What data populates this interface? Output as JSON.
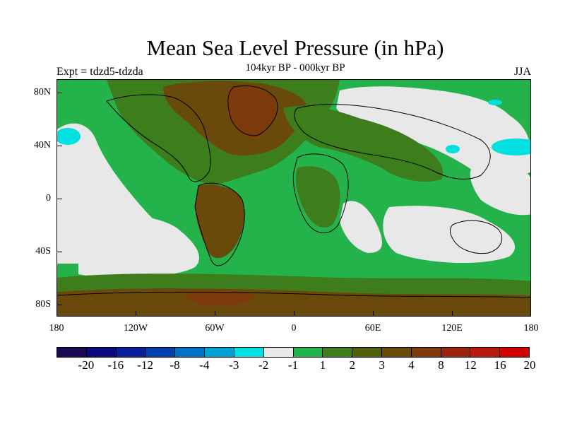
{
  "title": "Mean Sea Level Pressure (in hPa)",
  "subtitle": "104kyr BP - 000kyr BP",
  "experiment": "Expt = tdzd5-tdzda",
  "season": "JJA",
  "y_axis_labels": [
    "80N",
    "40N",
    "0",
    "40S",
    "80S"
  ],
  "x_axis_labels": [
    "180",
    "120W",
    "60W",
    "0",
    "60E",
    "120E",
    "180"
  ],
  "colorbar": {
    "colors": [
      "#1c0a55",
      "#0b0a7e",
      "#0a1f9e",
      "#0040a8",
      "#0070c0",
      "#00a0d0",
      "#00e0e0",
      "#e8e8e8",
      "#24b34b",
      "#3d7d1c",
      "#4f5f0a",
      "#6a4a0a",
      "#7d3a0d",
      "#9a250d",
      "#b8180d",
      "#d00000"
    ],
    "labels": [
      "-20",
      "-16",
      "-12",
      "-8",
      "-4",
      "-3",
      "-2",
      "-1",
      "1",
      "2",
      "3",
      "4",
      "8",
      "12",
      "16",
      "20"
    ]
  },
  "map_colors": {
    "ocean_base": "#24b34b",
    "near_zero": "#e8e8e8",
    "light_negative": "#00e0e0",
    "positive_mid": "#3d7d1c",
    "positive_high": "#6a4a0a",
    "positive_strong": "#7d3a0d"
  }
}
